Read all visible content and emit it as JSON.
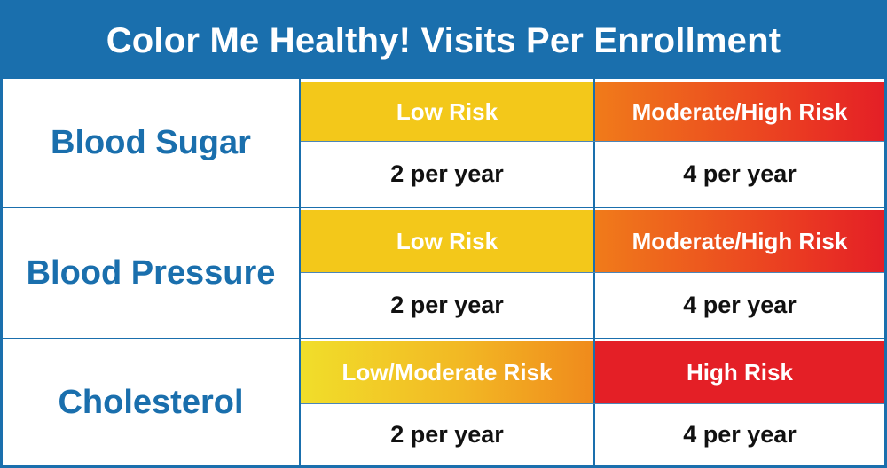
{
  "title": "Color Me Healthy! Visits Per Enrollment",
  "rows": [
    {
      "label": "Blood Sugar",
      "left_risk": "Low Risk",
      "right_risk": "Moderate/High Risk",
      "left_value": "2 per year",
      "right_value": "4 per year"
    },
    {
      "label": "Blood Pressure",
      "left_risk": "Low Risk",
      "right_risk": "Moderate/High Risk",
      "left_value": "2 per year",
      "right_value": "4 per year"
    },
    {
      "label": "Cholesterol",
      "left_risk": "Low/Moderate Risk",
      "right_risk": "High Risk",
      "left_value": "2 per year",
      "right_value": "4 per year"
    }
  ],
  "colors": {
    "brand_blue": "#1a6fad",
    "yellow": "#f3c81a",
    "orange": "#f07b1a",
    "red": "#e41f26"
  }
}
